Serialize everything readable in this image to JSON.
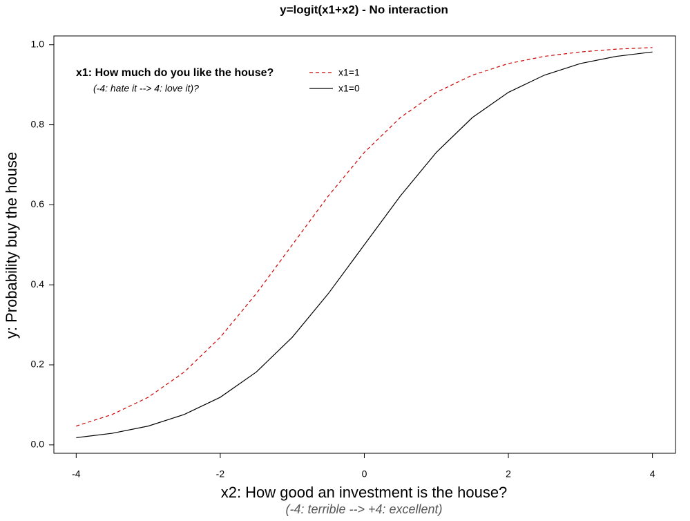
{
  "chart_data": {
    "type": "line",
    "title": "y=logit(x1+x2)  - No interaction",
    "x_label": "x2: How good an investment is the house?",
    "x_sublabel": "(-4: terrible --> +4: excellent)",
    "y_label": "y: Probability buy the house",
    "legend_title": "x1: How much do you like the house?",
    "legend_subtitle": "(-4: hate it --> 4: love it)?",
    "x": [
      -4,
      -3.5,
      -3,
      -2.5,
      -2,
      -1.5,
      -1,
      -0.5,
      0,
      0.5,
      1,
      1.5,
      2,
      2.5,
      3,
      3.5,
      4
    ],
    "series": [
      {
        "name": "x1=1",
        "color": "#cc0000",
        "linestyle": "dashed",
        "values": [
          0.047,
          0.076,
          0.119,
          0.182,
          0.269,
          0.378,
          0.5,
          0.622,
          0.731,
          0.818,
          0.881,
          0.924,
          0.953,
          0.971,
          0.982,
          0.989,
          0.993
        ]
      },
      {
        "name": "x1=0",
        "color": "#000000",
        "linestyle": "solid",
        "values": [
          0.018,
          0.029,
          0.047,
          0.076,
          0.119,
          0.182,
          0.269,
          0.378,
          0.5,
          0.622,
          0.731,
          0.818,
          0.881,
          0.924,
          0.953,
          0.971,
          0.982
        ]
      }
    ],
    "xlim": [
      -4.31,
      4.32
    ],
    "ylim": [
      -0.021,
      1.022
    ],
    "xticks": [
      -4,
      -2,
      0,
      2,
      4
    ],
    "yticks": [
      {
        "value": 0,
        "label": "0.0"
      },
      0.2,
      0.4,
      0.6,
      0.8,
      {
        "value": 1,
        "label": "1.0"
      }
    ],
    "grid": false
  }
}
